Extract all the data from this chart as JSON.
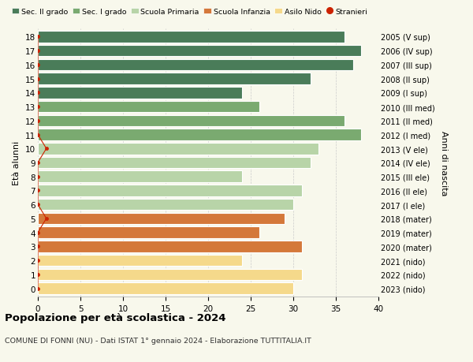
{
  "ages": [
    18,
    17,
    16,
    15,
    14,
    13,
    12,
    11,
    10,
    9,
    8,
    7,
    6,
    5,
    4,
    3,
    2,
    1,
    0
  ],
  "values": [
    36,
    38,
    37,
    32,
    24,
    26,
    36,
    38,
    33,
    32,
    24,
    31,
    30,
    29,
    26,
    31,
    24,
    31,
    30
  ],
  "right_labels": [
    "2005 (V sup)",
    "2006 (IV sup)",
    "2007 (III sup)",
    "2008 (II sup)",
    "2009 (I sup)",
    "2010 (III med)",
    "2011 (II med)",
    "2012 (I med)",
    "2013 (V ele)",
    "2014 (IV ele)",
    "2015 (III ele)",
    "2016 (II ele)",
    "2017 (I ele)",
    "2018 (mater)",
    "2019 (mater)",
    "2020 (mater)",
    "2021 (nido)",
    "2022 (nido)",
    "2023 (nido)"
  ],
  "bar_colors": [
    "#4a7c59",
    "#4a7c59",
    "#4a7c59",
    "#4a7c59",
    "#4a7c59",
    "#7aaa70",
    "#7aaa70",
    "#7aaa70",
    "#b8d4a8",
    "#b8d4a8",
    "#b8d4a8",
    "#b8d4a8",
    "#b8d4a8",
    "#d4783a",
    "#d4783a",
    "#d4783a",
    "#f5d98b",
    "#f5d98b",
    "#f5d98b"
  ],
  "stranieri_x": [
    0.0,
    0.0,
    0.0,
    0.0,
    0.0,
    0.0,
    0.0,
    0.0,
    1.0,
    0.0,
    0.0,
    0.0,
    0.0,
    1.0,
    0.0,
    0.0,
    0.0,
    0.0,
    0.0
  ],
  "legend_labels": [
    "Sec. II grado",
    "Sec. I grado",
    "Scuola Primaria",
    "Scuola Infanzia",
    "Asilo Nido",
    "Stranieri"
  ],
  "legend_colors": [
    "#4a7c59",
    "#7aaa70",
    "#b8d4a8",
    "#d4783a",
    "#f5d98b",
    "#cc2200"
  ],
  "title": "Popolazione per età scolastica - 2024",
  "subtitle": "COMUNE DI FONNI (NU) - Dati ISTAT 1° gennaio 2024 - Elaborazione TUTTITALIA.IT",
  "ylabel_left": "Età alunni",
  "ylabel_right": "Anni di nascita",
  "xlim": [
    0,
    40
  ],
  "background_color": "#f8f8ec",
  "grid_color": "#cccccc",
  "bar_height": 0.82
}
